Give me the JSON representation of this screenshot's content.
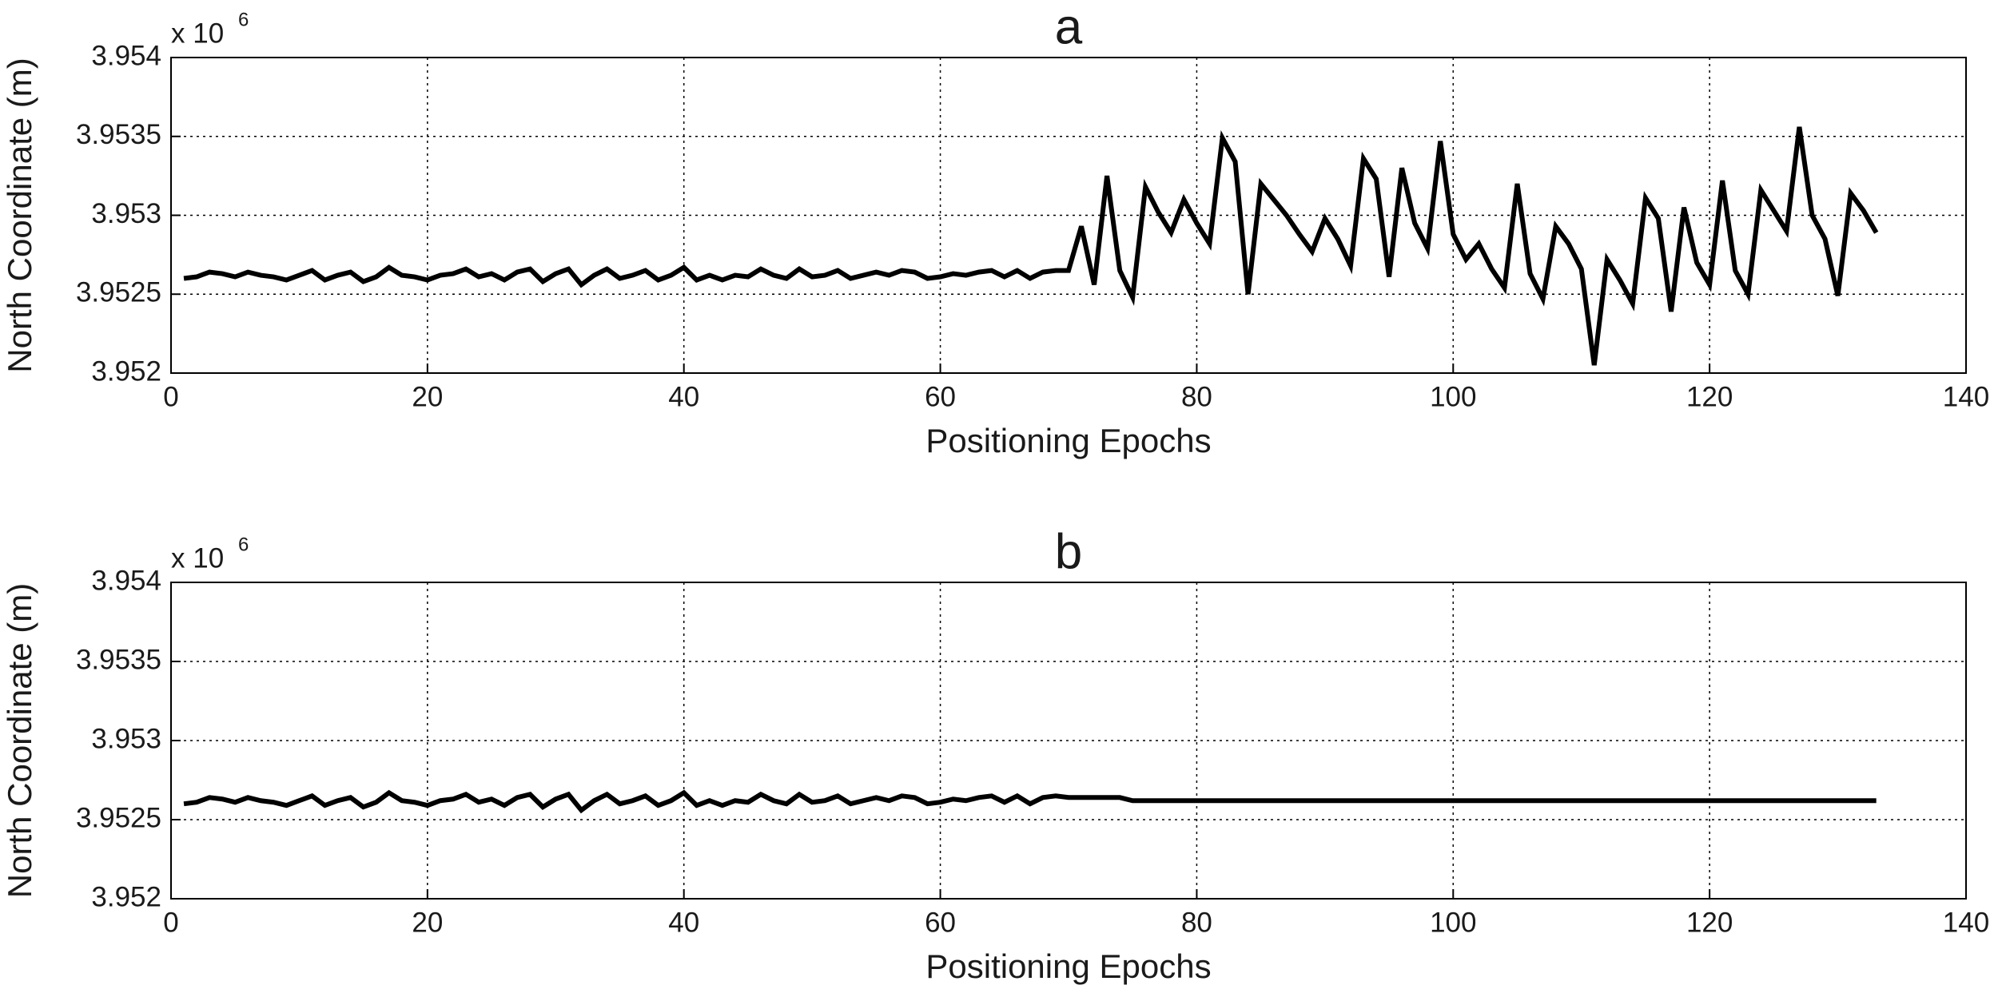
{
  "chart_data": [
    {
      "type": "line",
      "title": "a",
      "xlabel": "Positioning Epochs",
      "ylabel": "North Coordinate (m)",
      "y_scale_label": "x 10",
      "y_scale_exponent": "6",
      "color": "#000000",
      "grid": true,
      "xlim": [
        0,
        140
      ],
      "xticks": [
        0,
        20,
        40,
        60,
        80,
        100,
        120,
        140
      ],
      "ylim": [
        3.952,
        3.954
      ],
      "yticks": [
        3.952,
        3.9525,
        3.953,
        3.9535,
        3.954
      ],
      "x": [
        1,
        2,
        3,
        4,
        5,
        6,
        7,
        8,
        9,
        10,
        11,
        12,
        13,
        14,
        15,
        16,
        17,
        18,
        19,
        20,
        21,
        22,
        23,
        24,
        25,
        26,
        27,
        28,
        29,
        30,
        31,
        32,
        33,
        34,
        35,
        36,
        37,
        38,
        39,
        40,
        41,
        42,
        43,
        44,
        45,
        46,
        47,
        48,
        49,
        50,
        51,
        52,
        53,
        54,
        55,
        56,
        57,
        58,
        59,
        60,
        61,
        62,
        63,
        64,
        65,
        66,
        67,
        68,
        69,
        70,
        71,
        72,
        73,
        74,
        75,
        76,
        77,
        78,
        79,
        80,
        81,
        82,
        83,
        84,
        85,
        86,
        87,
        88,
        89,
        90,
        91,
        92,
        93,
        94,
        95,
        96,
        97,
        98,
        99,
        100,
        101,
        102,
        103,
        104,
        105,
        106,
        107,
        108,
        109,
        110,
        111,
        112,
        113,
        114,
        115,
        116,
        117,
        118,
        119,
        120,
        121,
        122,
        123,
        124,
        125,
        126,
        127,
        128,
        129,
        130,
        131,
        132,
        133
      ],
      "values": [
        3.9526,
        3.95261,
        3.95264,
        3.95263,
        3.95261,
        3.95264,
        3.95262,
        3.95261,
        3.95259,
        3.95262,
        3.95265,
        3.95259,
        3.95262,
        3.95264,
        3.95258,
        3.95261,
        3.95267,
        3.95262,
        3.95261,
        3.95259,
        3.95262,
        3.95263,
        3.95266,
        3.95261,
        3.95263,
        3.95259,
        3.95264,
        3.95266,
        3.95258,
        3.95263,
        3.95266,
        3.95256,
        3.95262,
        3.95266,
        3.9526,
        3.95262,
        3.95265,
        3.95259,
        3.95262,
        3.95267,
        3.95259,
        3.95262,
        3.95259,
        3.95262,
        3.95261,
        3.95266,
        3.95262,
        3.9526,
        3.95266,
        3.95261,
        3.95262,
        3.95265,
        3.9526,
        3.95262,
        3.95264,
        3.95262,
        3.95265,
        3.95264,
        3.9526,
        3.95261,
        3.95263,
        3.95262,
        3.95264,
        3.95265,
        3.95261,
        3.95265,
        3.9526,
        3.95264,
        3.95265,
        3.95265,
        3.95293,
        3.95256,
        3.95325,
        3.95265,
        3.95248,
        3.95318,
        3.95302,
        3.95289,
        3.9531,
        3.95295,
        3.95282,
        3.95349,
        3.95334,
        3.9525,
        3.9532,
        3.9531,
        3.953,
        3.95288,
        3.95277,
        3.95298,
        3.95285,
        3.95268,
        3.95336,
        3.95323,
        3.95261,
        3.9533,
        3.95295,
        3.95279,
        3.95347,
        3.95288,
        3.95272,
        3.95282,
        3.95266,
        3.95254,
        3.9532,
        3.95263,
        3.95247,
        3.95293,
        3.95282,
        3.95266,
        3.95205,
        3.95272,
        3.95259,
        3.95244,
        3.95311,
        3.95298,
        3.95239,
        3.95305,
        3.9527,
        3.95256,
        3.95322,
        3.95265,
        3.9525,
        3.95316,
        3.95303,
        3.9529,
        3.95356,
        3.953,
        3.95285,
        3.95249,
        3.95314,
        3.95303,
        3.95289
      ]
    },
    {
      "type": "line",
      "title": "b",
      "xlabel": "Positioning Epochs",
      "ylabel": "North Coordinate (m)",
      "y_scale_label": "x 10",
      "y_scale_exponent": "6",
      "color": "#000000",
      "grid": true,
      "xlim": [
        0,
        140
      ],
      "xticks": [
        0,
        20,
        40,
        60,
        80,
        100,
        120,
        140
      ],
      "ylim": [
        3.952,
        3.954
      ],
      "yticks": [
        3.952,
        3.9525,
        3.953,
        3.9535,
        3.954
      ],
      "x": [
        1,
        2,
        3,
        4,
        5,
        6,
        7,
        8,
        9,
        10,
        11,
        12,
        13,
        14,
        15,
        16,
        17,
        18,
        19,
        20,
        21,
        22,
        23,
        24,
        25,
        26,
        27,
        28,
        29,
        30,
        31,
        32,
        33,
        34,
        35,
        36,
        37,
        38,
        39,
        40,
        41,
        42,
        43,
        44,
        45,
        46,
        47,
        48,
        49,
        50,
        51,
        52,
        53,
        54,
        55,
        56,
        57,
        58,
        59,
        60,
        61,
        62,
        63,
        64,
        65,
        66,
        67,
        68,
        69,
        70,
        71,
        72,
        73,
        74,
        75,
        76,
        77,
        78,
        79,
        80,
        81,
        82,
        83,
        84,
        85,
        86,
        87,
        88,
        89,
        90,
        91,
        92,
        93,
        94,
        95,
        96,
        97,
        98,
        99,
        100,
        101,
        102,
        103,
        104,
        105,
        106,
        107,
        108,
        109,
        110,
        111,
        112,
        113,
        114,
        115,
        116,
        117,
        118,
        119,
        120,
        121,
        122,
        123,
        124,
        125,
        126,
        127,
        128,
        129,
        130,
        131,
        132,
        133
      ],
      "values": [
        3.9526,
        3.95261,
        3.95264,
        3.95263,
        3.95261,
        3.95264,
        3.95262,
        3.95261,
        3.95259,
        3.95262,
        3.95265,
        3.95259,
        3.95262,
        3.95264,
        3.95258,
        3.95261,
        3.95267,
        3.95262,
        3.95261,
        3.95259,
        3.95262,
        3.95263,
        3.95266,
        3.95261,
        3.95263,
        3.95259,
        3.95264,
        3.95266,
        3.95258,
        3.95263,
        3.95266,
        3.95256,
        3.95262,
        3.95266,
        3.9526,
        3.95262,
        3.95265,
        3.95259,
        3.95262,
        3.95267,
        3.95259,
        3.95262,
        3.95259,
        3.95262,
        3.95261,
        3.95266,
        3.95262,
        3.9526,
        3.95266,
        3.95261,
        3.95262,
        3.95265,
        3.9526,
        3.95262,
        3.95264,
        3.95262,
        3.95265,
        3.95264,
        3.9526,
        3.95261,
        3.95263,
        3.95262,
        3.95264,
        3.95265,
        3.95261,
        3.95265,
        3.9526,
        3.95264,
        3.95265,
        3.95264,
        3.95264,
        3.95264,
        3.95264,
        3.95264,
        3.95262,
        3.95262,
        3.95262,
        3.95262,
        3.95262,
        3.95262,
        3.95262,
        3.95262,
        3.95262,
        3.95262,
        3.95262,
        3.95262,
        3.95262,
        3.95262,
        3.95262,
        3.95262,
        3.95262,
        3.95262,
        3.95262,
        3.95262,
        3.95262,
        3.95262,
        3.95262,
        3.95262,
        3.95262,
        3.95262,
        3.95262,
        3.95262,
        3.95262,
        3.95262,
        3.95262,
        3.95262,
        3.95262,
        3.95262,
        3.95262,
        3.95262,
        3.95262,
        3.95262,
        3.95262,
        3.95262,
        3.95262,
        3.95262,
        3.95262,
        3.95262,
        3.95262,
        3.95262,
        3.95262,
        3.95262,
        3.95262,
        3.95262,
        3.95262,
        3.95262,
        3.95262,
        3.95262,
        3.95262,
        3.95262,
        3.95262,
        3.95262,
        3.95262
      ]
    }
  ]
}
